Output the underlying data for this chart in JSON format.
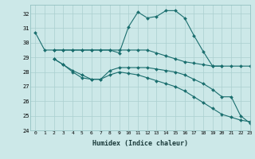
{
  "xlabel": "Humidex (Indice chaleur)",
  "bg_color": "#cce8e8",
  "grid_color": "#aacfcf",
  "line_color": "#1a6e6e",
  "xlim": [
    -0.5,
    23
  ],
  "ylim": [
    24,
    32.6
  ],
  "yticks": [
    24,
    25,
    26,
    27,
    28,
    29,
    30,
    31,
    32
  ],
  "xticks": [
    0,
    1,
    2,
    3,
    4,
    5,
    6,
    7,
    8,
    9,
    10,
    11,
    12,
    13,
    14,
    15,
    16,
    17,
    18,
    19,
    20,
    21,
    22,
    23
  ],
  "series": [
    {
      "x": [
        0,
        1,
        2,
        3,
        4,
        5,
        6,
        7,
        8,
        9,
        10,
        11,
        12,
        13,
        14,
        15,
        16,
        17,
        18,
        19,
        20,
        21,
        22,
        23
      ],
      "y": [
        30.7,
        29.5,
        29.5,
        29.5,
        29.5,
        29.5,
        29.5,
        29.5,
        29.5,
        29.3,
        31.1,
        32.1,
        31.7,
        31.8,
        32.2,
        32.2,
        31.7,
        30.5,
        29.4,
        28.4,
        28.4,
        28.4,
        28.4,
        28.4
      ]
    },
    {
      "x": [
        2,
        3,
        4,
        5,
        6,
        7,
        8,
        9,
        10,
        11,
        12,
        13,
        14,
        15,
        16,
        17,
        18,
        19,
        20
      ],
      "y": [
        29.5,
        29.5,
        29.5,
        29.5,
        29.5,
        29.5,
        29.5,
        29.5,
        29.5,
        29.5,
        29.5,
        29.3,
        29.1,
        28.9,
        28.7,
        28.6,
        28.5,
        28.4,
        28.4
      ]
    },
    {
      "x": [
        2,
        3,
        4,
        5,
        6,
        7,
        8,
        9,
        10,
        11,
        12,
        13,
        14,
        15,
        16,
        17,
        18,
        19,
        20,
        21,
        22,
        23
      ],
      "y": [
        28.9,
        28.5,
        28.0,
        27.6,
        27.5,
        27.5,
        28.1,
        28.3,
        28.3,
        28.3,
        28.3,
        28.2,
        28.1,
        28.0,
        27.8,
        27.5,
        27.2,
        26.8,
        26.3,
        26.3,
        25.0,
        24.5
      ]
    },
    {
      "x": [
        2,
        3,
        4,
        5,
        6,
        7,
        8,
        9,
        10,
        11,
        12,
        13,
        14,
        15,
        16,
        17,
        18,
        19,
        20,
        21,
        22,
        23
      ],
      "y": [
        28.9,
        28.5,
        28.1,
        27.8,
        27.5,
        27.5,
        27.8,
        28.0,
        27.9,
        27.8,
        27.6,
        27.4,
        27.2,
        27.0,
        26.7,
        26.3,
        25.9,
        25.5,
        25.1,
        24.9,
        24.7,
        24.6
      ]
    }
  ]
}
